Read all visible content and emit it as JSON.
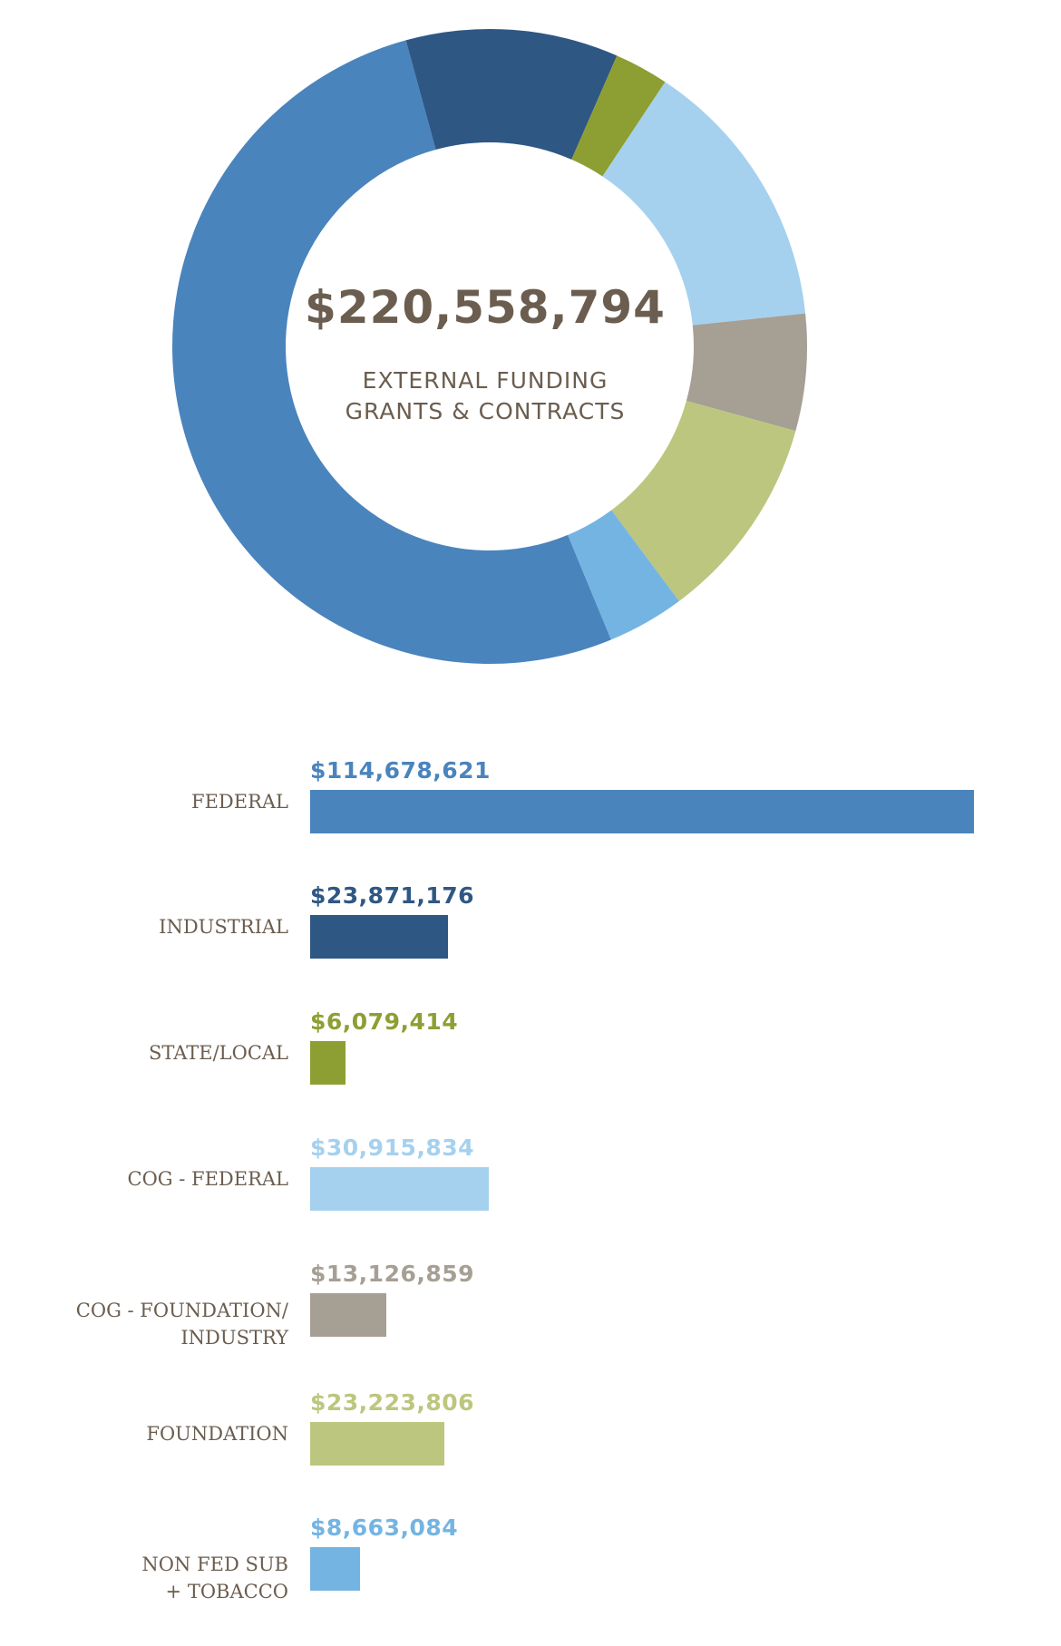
{
  "center": {
    "total": "$220,558,794",
    "line1": "EXTERNAL FUNDING",
    "line2": "GRANTS & CONTRACTS"
  },
  "chart_data": {
    "type": "donut",
    "categories": [
      "FEDERAL",
      "INDUSTRIAL",
      "STATE/LOCAL",
      "COG - FEDERAL",
      "COG - FOUNDATION/\nINDUSTRY",
      "FOUNDATION",
      "NON FED SUB\n+ TOBACCO"
    ],
    "values": [
      114678621,
      23871176,
      6079414,
      30915834,
      13126859,
      23223806,
      8663084
    ],
    "value_labels": [
      "$114,678,621",
      "$23,871,176",
      "$6,079,414",
      "$30,915,834",
      "$13,126,859",
      "$23,223,806",
      "$8,663,084"
    ],
    "colors": [
      "#4a84bd",
      "#2f5784",
      "#8d9f32",
      "#a5d1ef",
      "#a69f94",
      "#bdc67e",
      "#74b4e2"
    ],
    "title": "$220,558,794",
    "xlabel": "",
    "ylabel": ""
  }
}
